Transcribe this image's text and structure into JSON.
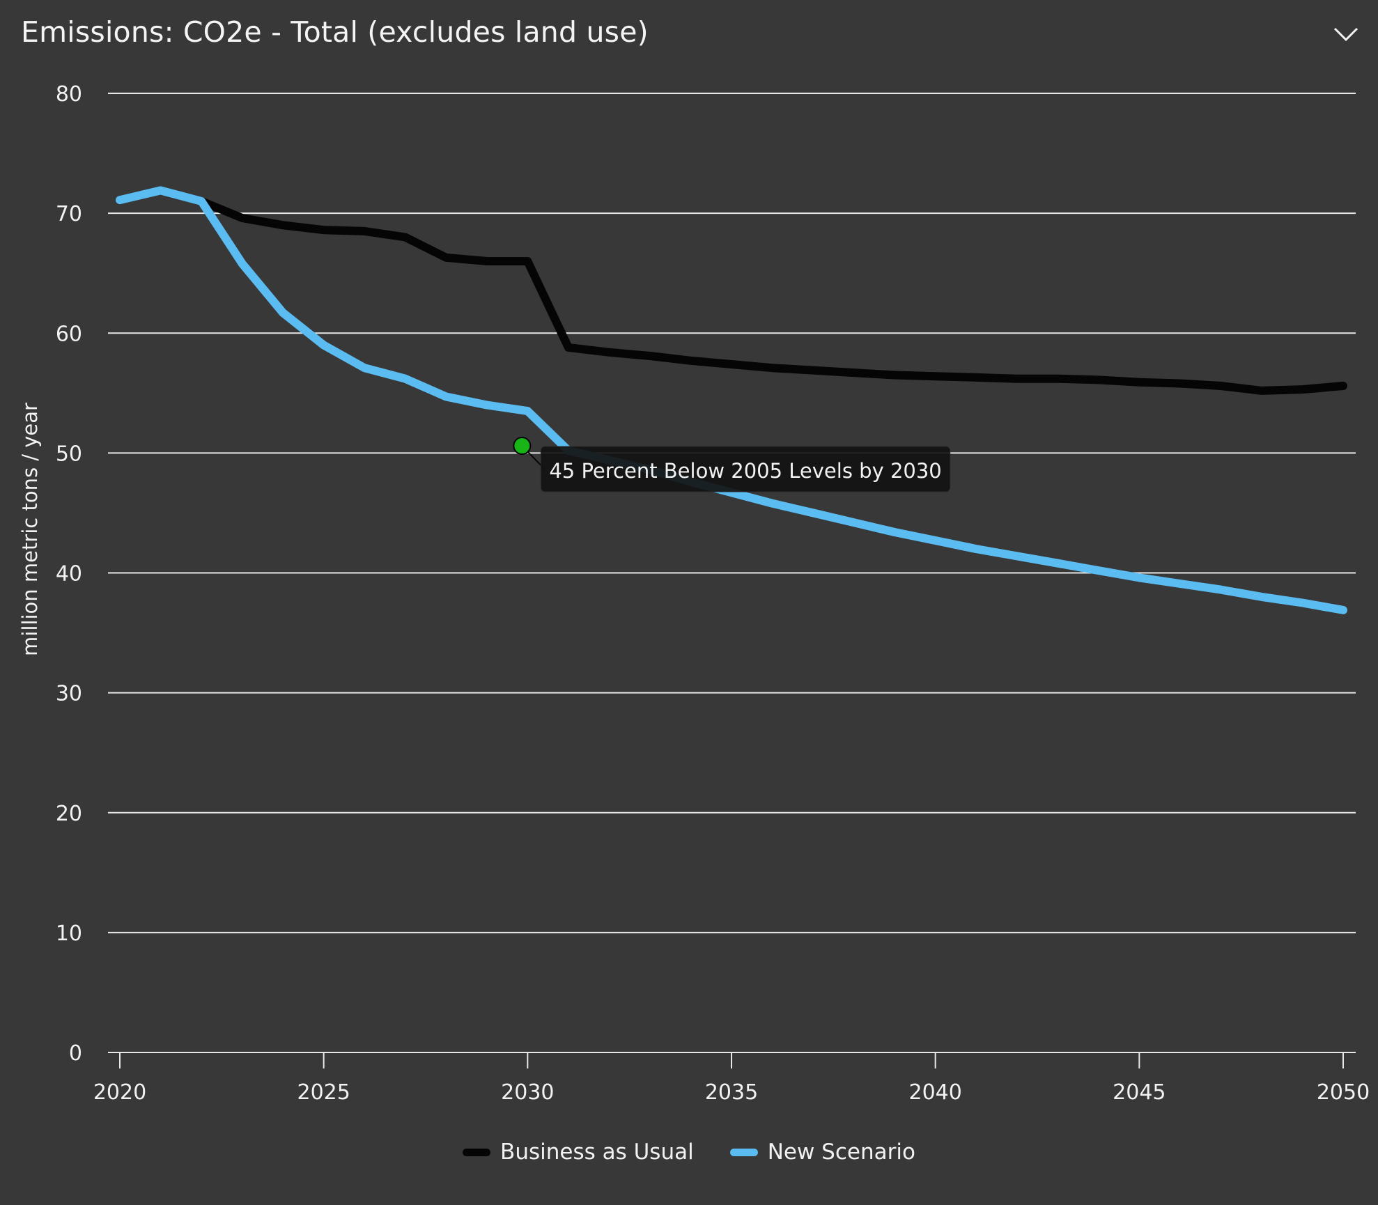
{
  "header": {
    "title": "Emissions: CO2e - Total (excludes land use)"
  },
  "icons": {
    "collapse": "chevron-down-icon"
  },
  "colors": {
    "background": "#383838",
    "grid": "#e8e8e8",
    "business_as_usual": "#050505",
    "new_scenario": "#5bbcf2",
    "marker": "#18b418",
    "tooltip_bg": "#121212"
  },
  "chart_data": {
    "type": "line",
    "title": "",
    "xlabel": "",
    "ylabel": "million metric tons / year",
    "xlim": [
      2020,
      2050
    ],
    "ylim": [
      0,
      80
    ],
    "x_ticks": [
      "2020",
      "2025",
      "2030",
      "2035",
      "2040",
      "2045",
      "2050"
    ],
    "y_ticks": [
      "0",
      "10",
      "20",
      "30",
      "40",
      "50",
      "60",
      "70",
      "80"
    ],
    "grid": true,
    "legend_position": "bottom-center",
    "x": [
      2020,
      2021,
      2022,
      2023,
      2024,
      2025,
      2026,
      2027,
      2028,
      2029,
      2030,
      2031,
      2032,
      2033,
      2034,
      2035,
      2036,
      2037,
      2038,
      2039,
      2040,
      2041,
      2042,
      2043,
      2044,
      2045,
      2046,
      2047,
      2048,
      2049,
      2050
    ],
    "series": [
      {
        "name": "Business as Usual",
        "values": [
          71.1,
          71.9,
          71.0,
          69.6,
          69.0,
          68.6,
          68.5,
          68.0,
          66.3,
          66.0,
          66.0,
          58.8,
          58.4,
          58.1,
          57.7,
          57.4,
          57.1,
          56.9,
          56.7,
          56.5,
          56.4,
          56.3,
          56.2,
          56.2,
          56.1,
          55.9,
          55.8,
          55.6,
          55.2,
          55.3,
          55.6
        ]
      },
      {
        "name": "New Scenario",
        "values": [
          71.1,
          71.9,
          71.0,
          65.8,
          61.7,
          59.0,
          57.1,
          56.2,
          54.7,
          54.0,
          53.5,
          50.2,
          49.4,
          48.6,
          47.6,
          46.7,
          45.8,
          45.0,
          44.2,
          43.4,
          42.7,
          42.0,
          41.4,
          40.8,
          40.2,
          39.6,
          39.1,
          38.6,
          38.0,
          37.5,
          36.9
        ]
      }
    ],
    "annotations": [
      {
        "x": 2030,
        "y": 50.6,
        "text": "45 Percent Below 2005 Levels by 2030"
      }
    ]
  }
}
